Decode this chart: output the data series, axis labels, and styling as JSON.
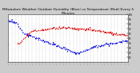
{
  "title": "Milwaukee Weather Outdoor Humidity (Blue) vs Temperature (Red) Every 5 Minutes",
  "title_fontsize": 3.2,
  "bg_color": "#cccccc",
  "plot_bg_color": "#ffffff",
  "blue_color": "#0000dd",
  "red_color": "#dd0000",
  "n_points": 288,
  "ylim_left": [
    0,
    100
  ],
  "ylim_right": [
    0,
    100
  ],
  "linewidth": 0.7,
  "right_yticks": [
    10,
    20,
    30,
    40,
    50,
    60,
    70,
    80,
    90,
    100
  ]
}
